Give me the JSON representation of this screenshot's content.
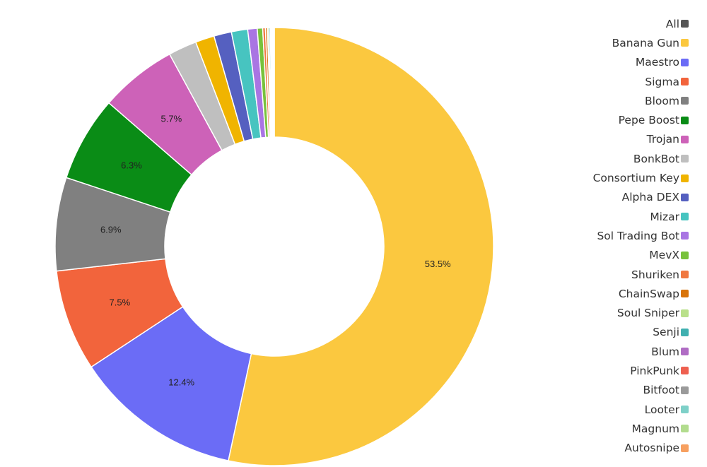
{
  "chart_data": {
    "type": "pie",
    "variant": "donut",
    "start_angle_deg": 0,
    "direction": "clockwise",
    "legend_position": "right",
    "slices": [
      {
        "name": "Banana Gun",
        "value": 53.5,
        "label": "53.5%",
        "color": "#fbc83f"
      },
      {
        "name": "Maestro",
        "value": 12.4,
        "label": "12.4%",
        "color": "#6b6cf6"
      },
      {
        "name": "Sigma",
        "value": 7.5,
        "label": "7.5%",
        "color": "#f2643c"
      },
      {
        "name": "Bloom",
        "value": 6.9,
        "label": "6.9%",
        "color": "#808080"
      },
      {
        "name": "Pepe Boost",
        "value": 6.3,
        "label": "6.3%",
        "color": "#0a8c16"
      },
      {
        "name": "Trojan",
        "value": 5.7,
        "label": "5.7%",
        "color": "#cd62b8"
      },
      {
        "name": "BonkBot",
        "value": 2.1,
        "label": "",
        "color": "#bfbfbf"
      },
      {
        "name": "Consortium Key",
        "value": 1.4,
        "label": "",
        "color": "#f0b400"
      },
      {
        "name": "Alpha DEX",
        "value": 1.3,
        "label": "",
        "color": "#5560c0"
      },
      {
        "name": "Mizar",
        "value": 1.2,
        "label": "",
        "color": "#47c4c0"
      },
      {
        "name": "Sol Trading Bot",
        "value": 0.7,
        "label": "",
        "color": "#a975e3"
      },
      {
        "name": "MevX",
        "value": 0.4,
        "label": "",
        "color": "#78c23c"
      },
      {
        "name": "Shuriken",
        "value": 0.2,
        "label": "",
        "color": "#f07840"
      },
      {
        "name": "ChainSwap",
        "value": 0.15,
        "label": "",
        "color": "#d8740a"
      },
      {
        "name": "Soul Sniper",
        "value": 0.1,
        "label": "",
        "color": "#b9e08a"
      },
      {
        "name": "Senji",
        "value": 0.1,
        "label": "",
        "color": "#40b0b0"
      },
      {
        "name": "Blum",
        "value": 0.05,
        "label": "",
        "color": "#b06cc4"
      },
      {
        "name": "PinkPunk",
        "value": 0.05,
        "label": "",
        "color": "#ee6050"
      },
      {
        "name": "Bitfoot",
        "value": 0.05,
        "label": "",
        "color": "#9a9a9a"
      },
      {
        "name": "Looter",
        "value": 0.05,
        "label": "",
        "color": "#7ed0c8"
      },
      {
        "name": "Magnum",
        "value": 0.05,
        "label": "",
        "color": "#b2dc8e"
      },
      {
        "name": "Autosnipe",
        "value": 0.05,
        "label": "",
        "color": "#f7a060"
      }
    ],
    "legend": [
      {
        "name": "All",
        "color": "#555555"
      },
      {
        "name": "Banana Gun",
        "color": "#fbc83f"
      },
      {
        "name": "Maestro",
        "color": "#6b6cf6"
      },
      {
        "name": "Sigma",
        "color": "#f2643c"
      },
      {
        "name": "Bloom",
        "color": "#808080"
      },
      {
        "name": "Pepe Boost",
        "color": "#0a8c16"
      },
      {
        "name": "Trojan",
        "color": "#cd62b8"
      },
      {
        "name": "BonkBot",
        "color": "#bfbfbf"
      },
      {
        "name": "Consortium Key",
        "color": "#f0b400"
      },
      {
        "name": "Alpha DEX",
        "color": "#5560c0"
      },
      {
        "name": "Mizar",
        "color": "#47c4c0"
      },
      {
        "name": "Sol Trading Bot",
        "color": "#a975e3"
      },
      {
        "name": "MevX",
        "color": "#78c23c"
      },
      {
        "name": "Shuriken",
        "color": "#f07840"
      },
      {
        "name": "ChainSwap",
        "color": "#d8740a"
      },
      {
        "name": "Soul Sniper",
        "color": "#b9e08a"
      },
      {
        "name": "Senji",
        "color": "#40b0b0"
      },
      {
        "name": "Blum",
        "color": "#b06cc4"
      },
      {
        "name": "PinkPunk",
        "color": "#ee6050"
      },
      {
        "name": "Bitfoot",
        "color": "#9a9a9a"
      },
      {
        "name": "Looter",
        "color": "#7ed0c8"
      },
      {
        "name": "Magnum",
        "color": "#b2dc8e"
      },
      {
        "name": "Autosnipe",
        "color": "#f7a060"
      }
    ]
  }
}
